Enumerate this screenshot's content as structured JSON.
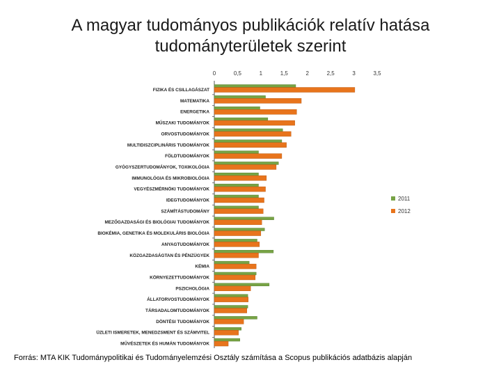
{
  "title": {
    "line1": "A magyar tudományos publikációk relatív hatása",
    "line2": "tudományterületek szerint"
  },
  "source": "Forrás: MTA KIK Tudománypolitikai és Tudományelemzési Osztály számítása a Scopus publikációs adatbázis alapján",
  "chart_data": {
    "type": "bar",
    "orientation": "horizontal",
    "xlim": [
      0,
      3.5
    ],
    "xticks": [
      "0",
      "0,5",
      "1",
      "1,5",
      "2",
      "2,5",
      "3",
      "3,5"
    ],
    "grid": false,
    "legend_position": "right",
    "categories": [
      "FIZIKA ÉS CSILLAGÁSZAT",
      "MATEMATIKA",
      "ENERGETIKA",
      "MŰSZAKI TUDOMÁNYOK",
      "ORVOSTUDOMÁNYOK",
      "MULTIDISZCIPLINÁRIS TUDOMÁNYOK",
      "FÖLDTUDOMÁNYOK",
      "GYÓGYSZERTUDOMÁNYOK, TOXIKOLÓGIA",
      "IMMUNOLÓGIA ÉS MIKROBIOLÓGIA",
      "VEGYÉSZMÉRNÖKI TUDOMÁNYOK",
      "IDEGTUDOMÁNYOK",
      "SZÁMÍTÁSTUDOMÁNY",
      "MEZŐGAZDASÁGI ÉS BIOLÓGIAI TUDOMÁNYOK",
      "BIOKÉMIA, GENETIKA ÉS MOLEKULÁRIS BIOLÓGIA",
      "ANYAGTUDOMÁNYOK",
      "KÖZGAZDASÁGTAN ÉS PÉNZÜGYEK",
      "KÉMIA",
      "KÖRNYEZETTUDOMÁNYOK",
      "PSZICHOLÓGIA",
      "ÁLLATORVOSTUDOMÁNYOK",
      "TÁRSADALOMTUDOMÁNYOK",
      "DÖNTÉSI TUDOMÁNYOK",
      "ÜZLETI ISMERETEK, MENEDZSMENT ÉS SZÁMVITEL",
      "MŰVÉSZETEK ÉS HUMÁN TUDOMÁNYOK"
    ],
    "series": [
      {
        "name": "2011",
        "color": "#77a345",
        "values": [
          1.75,
          1.1,
          0.98,
          1.15,
          1.47,
          1.45,
          0.95,
          1.38,
          0.95,
          0.95,
          0.95,
          0.95,
          1.28,
          1.08,
          0.92,
          1.27,
          0.75,
          0.9,
          1.18,
          0.72,
          0.72,
          0.92,
          0.58,
          0.55
        ]
      },
      {
        "name": "2012",
        "color": "#e8741c",
        "values": [
          3.02,
          1.87,
          1.77,
          1.73,
          1.65,
          1.55,
          1.45,
          1.33,
          1.12,
          1.1,
          1.07,
          1.05,
          1.02,
          1.0,
          0.97,
          0.95,
          0.9,
          0.88,
          0.78,
          0.73,
          0.7,
          0.63,
          0.52,
          0.3
        ]
      }
    ]
  }
}
